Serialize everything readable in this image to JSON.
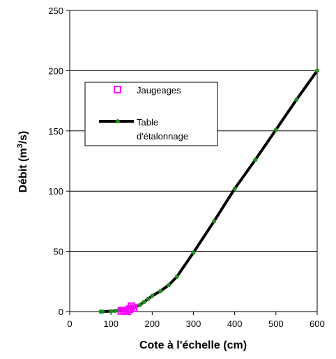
{
  "chart_data": {
    "type": "scatter",
    "xlabel": "Cote à l'échelle (cm)",
    "ylabel": {
      "before": "Débit (m",
      "sup": "3",
      "after": "/s)"
    },
    "xlim": [
      0,
      600
    ],
    "ylim": [
      0,
      250
    ],
    "x_ticks": [
      "0",
      "100",
      "200",
      "300",
      "400",
      "500",
      "600"
    ],
    "y_ticks": [
      "0",
      "50",
      "100",
      "150",
      "200",
      "250"
    ],
    "grid": {
      "horizontal": true,
      "vertical": false
    },
    "legend_position": "upper-left",
    "legend": {
      "jaugeages_label": "Jaugeages",
      "table_label_line1": "Table",
      "table_label_line2": "d'étalonnage"
    },
    "colors": {
      "jaugeages": "#ff00ff",
      "curve": "#000000",
      "curve_markers": "#228b22"
    },
    "series": [
      {
        "name": "Jaugeages",
        "marker": "square",
        "points": [
          [
            125,
            0.5
          ],
          [
            130,
            1.0
          ],
          [
            135,
            0.8
          ],
          [
            140,
            0.3
          ],
          [
            145,
            2.0
          ],
          [
            150,
            4.5
          ],
          [
            155,
            3.0
          ]
        ]
      },
      {
        "name": "Table d'étalonnage",
        "marker": "line-with-dots",
        "points": [
          [
            75,
            0
          ],
          [
            80,
            0
          ],
          [
            100,
            0.3
          ],
          [
            110,
            0.6
          ],
          [
            120,
            1.0
          ],
          [
            130,
            1.6
          ],
          [
            140,
            2.3
          ],
          [
            150,
            3.0
          ],
          [
            160,
            4.0
          ],
          [
            170,
            5.5
          ],
          [
            180,
            8.0
          ],
          [
            190,
            10.5
          ],
          [
            200,
            13.0
          ],
          [
            220,
            17.0
          ],
          [
            240,
            22.0
          ],
          [
            260,
            29.0
          ],
          [
            300,
            49.0
          ],
          [
            350,
            75.0
          ],
          [
            400,
            102.0
          ],
          [
            450,
            126.0
          ],
          [
            500,
            151.0
          ],
          [
            550,
            176.0
          ],
          [
            600,
            200.0
          ]
        ]
      }
    ]
  }
}
